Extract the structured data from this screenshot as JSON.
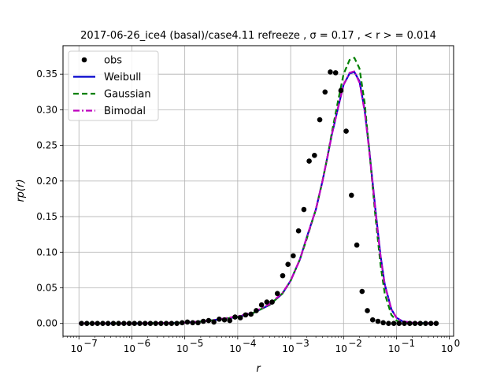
{
  "chart_data": {
    "type": "line",
    "title": "2017-06-26_ice4 (basal)/case4.11 refreeze , σ = 0.17 , < r > = 0.014",
    "xlabel": "r",
    "ylabel": "rp(r)",
    "xscale": "log",
    "xlim": [
      5e-08,
      1.2
    ],
    "ylim": [
      -0.018,
      0.39
    ],
    "grid": true,
    "legend_position": "top-left",
    "x_ticks": [
      1e-07,
      1e-06,
      1e-05,
      0.0001,
      0.001,
      0.01,
      0.1,
      1
    ],
    "x_tick_labels": [
      "10",
      "10",
      "10",
      "10",
      "10",
      "10",
      "10",
      "10"
    ],
    "x_tick_exponents": [
      "−7",
      "−6",
      "−5",
      "−4",
      "−3",
      "−2",
      "−1",
      "0"
    ],
    "y_ticks": [
      0.0,
      0.05,
      0.1,
      0.15,
      0.2,
      0.25,
      0.3,
      0.35
    ],
    "y_tick_labels": [
      "0.00",
      "0.05",
      "0.10",
      "0.15",
      "0.20",
      "0.25",
      "0.30",
      "0.35"
    ],
    "series": [
      {
        "name": "obs",
        "style": "markers",
        "color": "#000000",
        "x": [
          1.12e-07,
          1.41e-07,
          1.78e-07,
          2.24e-07,
          2.82e-07,
          3.55e-07,
          4.47e-07,
          5.62e-07,
          7.08e-07,
          8.91e-07,
          1.12e-06,
          1.41e-06,
          1.78e-06,
          2.24e-06,
          2.82e-06,
          3.55e-06,
          4.47e-06,
          5.62e-06,
          7.08e-06,
          8.91e-06,
          1.12e-05,
          1.41e-05,
          1.78e-05,
          2.24e-05,
          2.82e-05,
          3.55e-05,
          4.47e-05,
          5.62e-05,
          7.08e-05,
          8.91e-05,
          0.000112,
          0.000141,
          0.000178,
          0.000224,
          0.000282,
          0.000355,
          0.000447,
          0.000562,
          0.000708,
          0.000891,
          0.00112,
          0.00141,
          0.00178,
          0.00224,
          0.00282,
          0.00355,
          0.00447,
          0.00562,
          0.00708,
          0.00891,
          0.0112,
          0.0141,
          0.0178,
          0.0224,
          0.0282,
          0.0355,
          0.0447,
          0.0562,
          0.0708,
          0.0891,
          0.112,
          0.141,
          0.178,
          0.224,
          0.282,
          0.355,
          0.447,
          0.562
        ],
        "y": [
          0,
          0,
          0,
          0,
          0,
          0,
          0,
          0,
          0,
          0,
          0,
          0,
          0,
          0,
          0,
          0,
          0,
          0,
          0,
          0.001,
          0.002,
          0.001,
          0.001,
          0.003,
          0.004,
          0.002,
          0.006,
          0.005,
          0.004,
          0.009,
          0.008,
          0.012,
          0.013,
          0.018,
          0.026,
          0.03,
          0.03,
          0.042,
          0.067,
          0.083,
          0.095,
          0.13,
          0.16,
          0.228,
          0.236,
          0.286,
          0.325,
          0.353,
          0.352,
          0.327,
          0.27,
          0.18,
          0.11,
          0.045,
          0.018,
          0.005,
          0.003,
          0.001,
          0,
          0,
          0,
          0,
          0,
          0,
          0,
          0,
          0,
          0
        ]
      },
      {
        "name": "Weibull",
        "style": "solid",
        "color": "#0000cc",
        "x": [
          1e-07,
          1e-06,
          1e-05,
          3e-05,
          0.0001,
          0.0002,
          0.0004,
          0.0007,
          0.001,
          0.0015,
          0.002,
          0.003,
          0.004,
          0.005,
          0.006,
          0.008,
          0.01,
          0.013,
          0.016,
          0.02,
          0.025,
          0.03,
          0.04,
          0.05,
          0.06,
          0.08,
          0.1,
          0.13,
          0.2,
          0.5
        ],
        "y": [
          0,
          0,
          0.001,
          0.004,
          0.009,
          0.015,
          0.026,
          0.042,
          0.06,
          0.09,
          0.12,
          0.16,
          0.2,
          0.235,
          0.265,
          0.305,
          0.335,
          0.351,
          0.353,
          0.34,
          0.3,
          0.25,
          0.16,
          0.095,
          0.055,
          0.02,
          0.008,
          0.003,
          0.001,
          0
        ]
      },
      {
        "name": "Gaussian",
        "style": "dashed",
        "color": "#008000",
        "x": [
          1e-07,
          1e-06,
          1e-05,
          3e-05,
          0.0001,
          0.0002,
          0.0004,
          0.0007,
          0.001,
          0.0015,
          0.002,
          0.003,
          0.004,
          0.005,
          0.006,
          0.008,
          0.01,
          0.013,
          0.016,
          0.02,
          0.025,
          0.03,
          0.04,
          0.05,
          0.06,
          0.08,
          0.1,
          0.13,
          0.2,
          0.5
        ],
        "y": [
          0,
          0,
          0.001,
          0.004,
          0.009,
          0.015,
          0.026,
          0.042,
          0.06,
          0.09,
          0.118,
          0.16,
          0.2,
          0.235,
          0.268,
          0.315,
          0.35,
          0.37,
          0.373,
          0.358,
          0.31,
          0.25,
          0.15,
          0.082,
          0.042,
          0.012,
          0.004,
          0.001,
          0,
          0
        ]
      },
      {
        "name": "Bimodal",
        "style": "dashdot",
        "color": "#bf00bf",
        "x": [
          1e-07,
          1e-06,
          1e-05,
          3e-05,
          0.0001,
          0.0002,
          0.0004,
          0.0007,
          0.001,
          0.0015,
          0.002,
          0.003,
          0.004,
          0.005,
          0.006,
          0.008,
          0.01,
          0.013,
          0.016,
          0.02,
          0.025,
          0.03,
          0.04,
          0.05,
          0.06,
          0.08,
          0.1,
          0.13,
          0.2,
          0.5
        ],
        "y": [
          0,
          0,
          0.001,
          0.004,
          0.01,
          0.016,
          0.027,
          0.043,
          0.06,
          0.09,
          0.12,
          0.16,
          0.2,
          0.235,
          0.265,
          0.305,
          0.335,
          0.352,
          0.354,
          0.338,
          0.298,
          0.248,
          0.158,
          0.094,
          0.054,
          0.02,
          0.008,
          0.003,
          0.001,
          0
        ]
      }
    ]
  }
}
